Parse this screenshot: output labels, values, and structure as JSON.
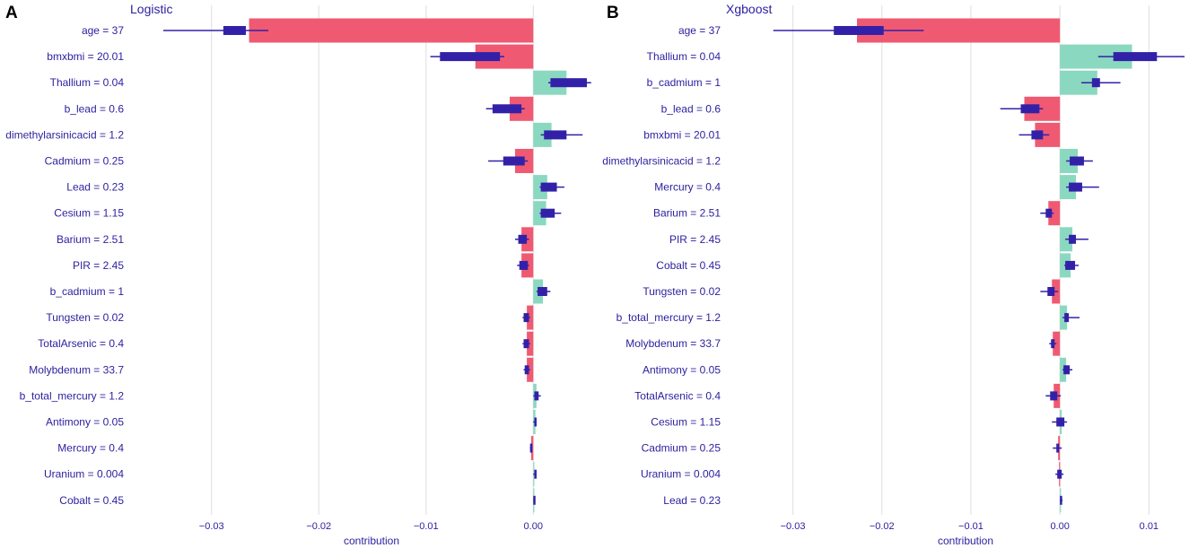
{
  "chart_data": [
    {
      "panel": "A",
      "type": "bar",
      "title": "Logistic",
      "xlabel": "contribution",
      "ylabel": "",
      "xlim": [
        -0.0355,
        0.0055
      ],
      "xticks": [
        -0.03,
        -0.02,
        -0.01,
        0.0
      ],
      "xtick_labels": [
        "−0.03",
        "−0.02",
        "−0.01",
        "0.00"
      ],
      "grid": true,
      "categories": [
        "age = 37",
        "bmxbmi = 20.01",
        "Thallium = 0.04",
        "b_lead = 0.6",
        "dimethylarsinicacid = 1.2",
        "Cadmium = 0.25",
        "Lead = 0.23",
        "Cesium = 1.15",
        "Barium = 2.51",
        "PIR = 2.45",
        "b_cadmium = 1",
        "Tungsten = 0.02",
        "TotalArsenic = 0.4",
        "Molybdenum = 33.7",
        "b_total_mercury = 1.2",
        "Antimony = 0.05",
        "Mercury = 0.4",
        "Uranium = 0.004",
        "Cobalt = 0.45"
      ],
      "values": [
        -0.0265,
        -0.0054,
        0.0031,
        -0.0022,
        0.0017,
        -0.0017,
        0.0013,
        0.0012,
        -0.0011,
        -0.0011,
        0.0009,
        -0.0006,
        -0.0006,
        -0.0006,
        0.0003,
        0.0002,
        -0.0002,
        0.0001,
        0.0001
      ],
      "box_q1": [
        -0.0289,
        -0.0087,
        0.0016,
        -0.0038,
        0.001,
        -0.0028,
        0.0007,
        0.0007,
        -0.0014,
        -0.0013,
        0.0004,
        -0.0009,
        -0.0009,
        -0.0008,
        0.0001,
        0.0001,
        -0.0003,
        0.0001,
        0.0
      ],
      "box_q3": [
        -0.0268,
        -0.0031,
        0.005,
        -0.0011,
        0.0031,
        -0.0008,
        0.0022,
        0.002,
        -0.0006,
        -0.0005,
        0.0013,
        -0.0004,
        -0.0004,
        -0.0004,
        0.0005,
        0.0003,
        -0.0001,
        0.0002,
        0.0001
      ],
      "whisker_low": [
        -0.0345,
        -0.0096,
        0.0014,
        -0.0044,
        0.0007,
        -0.0042,
        0.0006,
        0.0006,
        -0.0017,
        -0.0015,
        0.0003,
        -0.001,
        -0.001,
        -0.0009,
        0.0,
        0.0,
        -0.0003,
        0.0,
        0.0
      ],
      "whisker_high": [
        -0.0247,
        -0.0027,
        0.0054,
        -0.0008,
        0.0046,
        -0.0005,
        0.0029,
        0.0026,
        -0.0004,
        -0.0004,
        0.0016,
        -0.0003,
        -0.0003,
        -0.0003,
        0.0007,
        0.0003,
        -0.0001,
        0.0002,
        0.0001
      ]
    },
    {
      "panel": "B",
      "type": "bar",
      "title": "Xgboost",
      "xlabel": "contribution",
      "ylabel": "",
      "xlim": [
        -0.0355,
        0.0145
      ],
      "xticks": [
        -0.03,
        -0.02,
        -0.01,
        0.0,
        0.01
      ],
      "xtick_labels": [
        "−0.03",
        "−0.02",
        "−0.01",
        "0.00",
        "0.01"
      ],
      "grid": true,
      "categories": [
        "age = 37",
        "Thallium = 0.04",
        "b_cadmium = 1",
        "b_lead = 0.6",
        "bmxbmi = 20.01",
        "dimethylarsinicacid = 1.2",
        "Mercury = 0.4",
        "Barium = 2.51",
        "PIR = 2.45",
        "Cobalt = 0.45",
        "Tungsten = 0.02",
        "b_total_mercury = 1.2",
        "Molybdenum = 33.7",
        "Antimony = 0.05",
        "TotalArsenic = 0.4",
        "Cesium = 1.15",
        "Cadmium = 0.25",
        "Uranium = 0.004",
        "Lead = 0.23"
      ],
      "values": [
        -0.0228,
        0.0081,
        0.0042,
        -0.004,
        -0.0028,
        0.002,
        0.0018,
        -0.0013,
        0.0014,
        0.0012,
        -0.0009,
        0.0008,
        -0.0008,
        0.0007,
        -0.0007,
        0.0002,
        -0.0002,
        -0.0001,
        0.0001
      ],
      "box_q1": [
        -0.0254,
        0.006,
        0.0036,
        -0.0044,
        -0.0032,
        0.0011,
        0.001,
        -0.0016,
        0.001,
        0.0006,
        -0.0014,
        0.0005,
        -0.001,
        0.0004,
        -0.0011,
        -0.0004,
        -0.0004,
        -0.0003,
        0.0
      ],
      "box_q3": [
        -0.0198,
        0.0109,
        0.0045,
        -0.0023,
        -0.0019,
        0.0027,
        0.0025,
        -0.0009,
        0.0018,
        0.0017,
        -0.0006,
        0.001,
        -0.0006,
        0.0011,
        -0.0003,
        0.0005,
        -0.0001,
        0.0002,
        0.0002
      ],
      "whisker_low": [
        -0.0322,
        0.0043,
        0.0024,
        -0.0067,
        -0.0046,
        0.0007,
        0.0007,
        -0.0022,
        0.0006,
        0.0005,
        -0.0022,
        0.0003,
        -0.0012,
        0.0003,
        -0.0016,
        -0.0009,
        -0.0008,
        -0.0005,
        0.0
      ],
      "whisker_high": [
        -0.0153,
        0.014,
        0.0068,
        -0.0019,
        -0.0012,
        0.0037,
        0.0044,
        -0.0007,
        0.0032,
        0.0021,
        -0.0002,
        0.0022,
        -0.0004,
        0.0014,
        0.0001,
        0.0008,
        0.0002,
        0.0004,
        0.0003
      ]
    }
  ],
  "colors": {
    "negative_bar": "#ef5a72",
    "positive_bar": "#8ad8bf",
    "box": "#3221a8",
    "text": "#2b1e9e",
    "grid": "#e3e3e3"
  }
}
